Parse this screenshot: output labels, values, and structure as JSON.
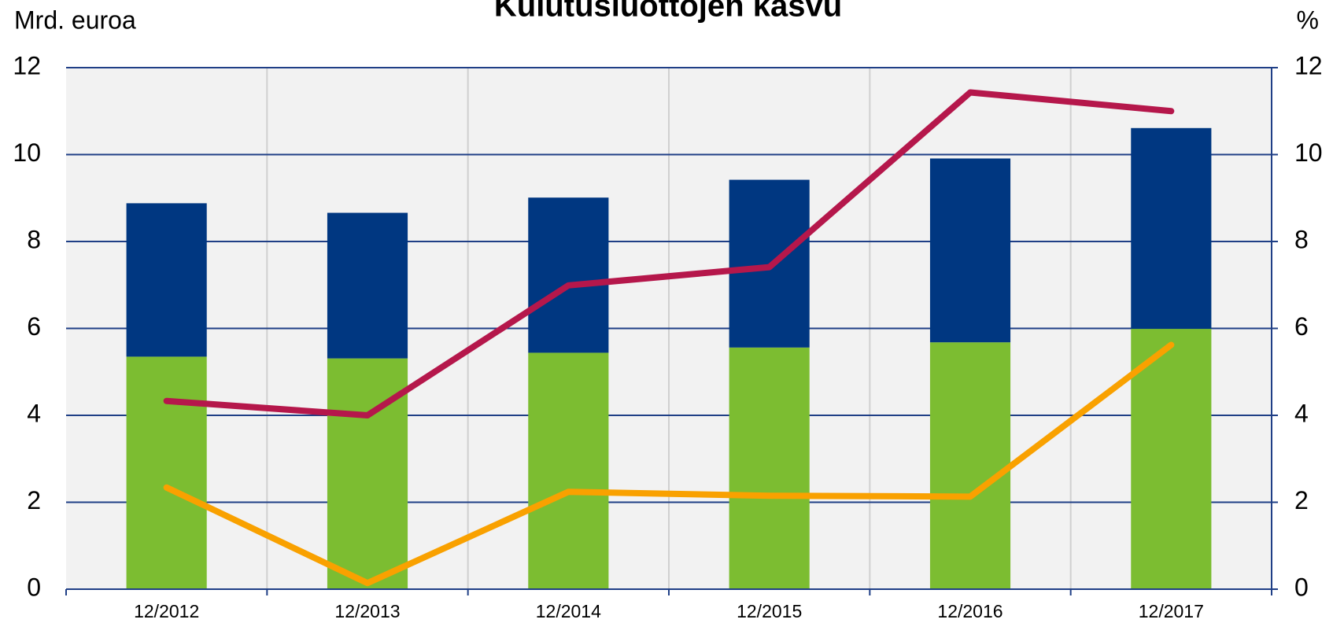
{
  "chart_data": {
    "type": "bar_line",
    "title": "Kulutusluottojen kasvu",
    "y_label": "Mrd. euroa",
    "y2_label": "%",
    "categories": [
      "12/2012",
      "12/2013",
      "12/2014",
      "12/2015",
      "12/2016",
      "12/2017"
    ],
    "series": [
      {
        "type": "bar",
        "color": "#7cbd31",
        "values": [
          5.35,
          5.31,
          5.44,
          5.56,
          5.68,
          5.99
        ]
      },
      {
        "type": "bar",
        "color": "#003781",
        "values": [
          3.53,
          3.35,
          3.57,
          3.86,
          4.23,
          4.62
        ]
      },
      {
        "type": "line",
        "axis": "y2",
        "color": "#b5174b",
        "values": [
          4.33,
          4.0,
          6.99,
          7.41,
          11.43,
          11.0
        ]
      },
      {
        "type": "line",
        "axis": "y2",
        "color": "#f9a100",
        "values": [
          2.34,
          0.14,
          2.24,
          2.15,
          2.13,
          5.62
        ]
      }
    ],
    "ylim": [
      0,
      12
    ],
    "yticks": [
      0,
      2,
      4,
      6,
      8,
      10,
      12
    ],
    "y2lim": [
      0,
      12
    ],
    "y2ticks": [
      0,
      2,
      4,
      6,
      8,
      10,
      12
    ],
    "grid": true
  }
}
